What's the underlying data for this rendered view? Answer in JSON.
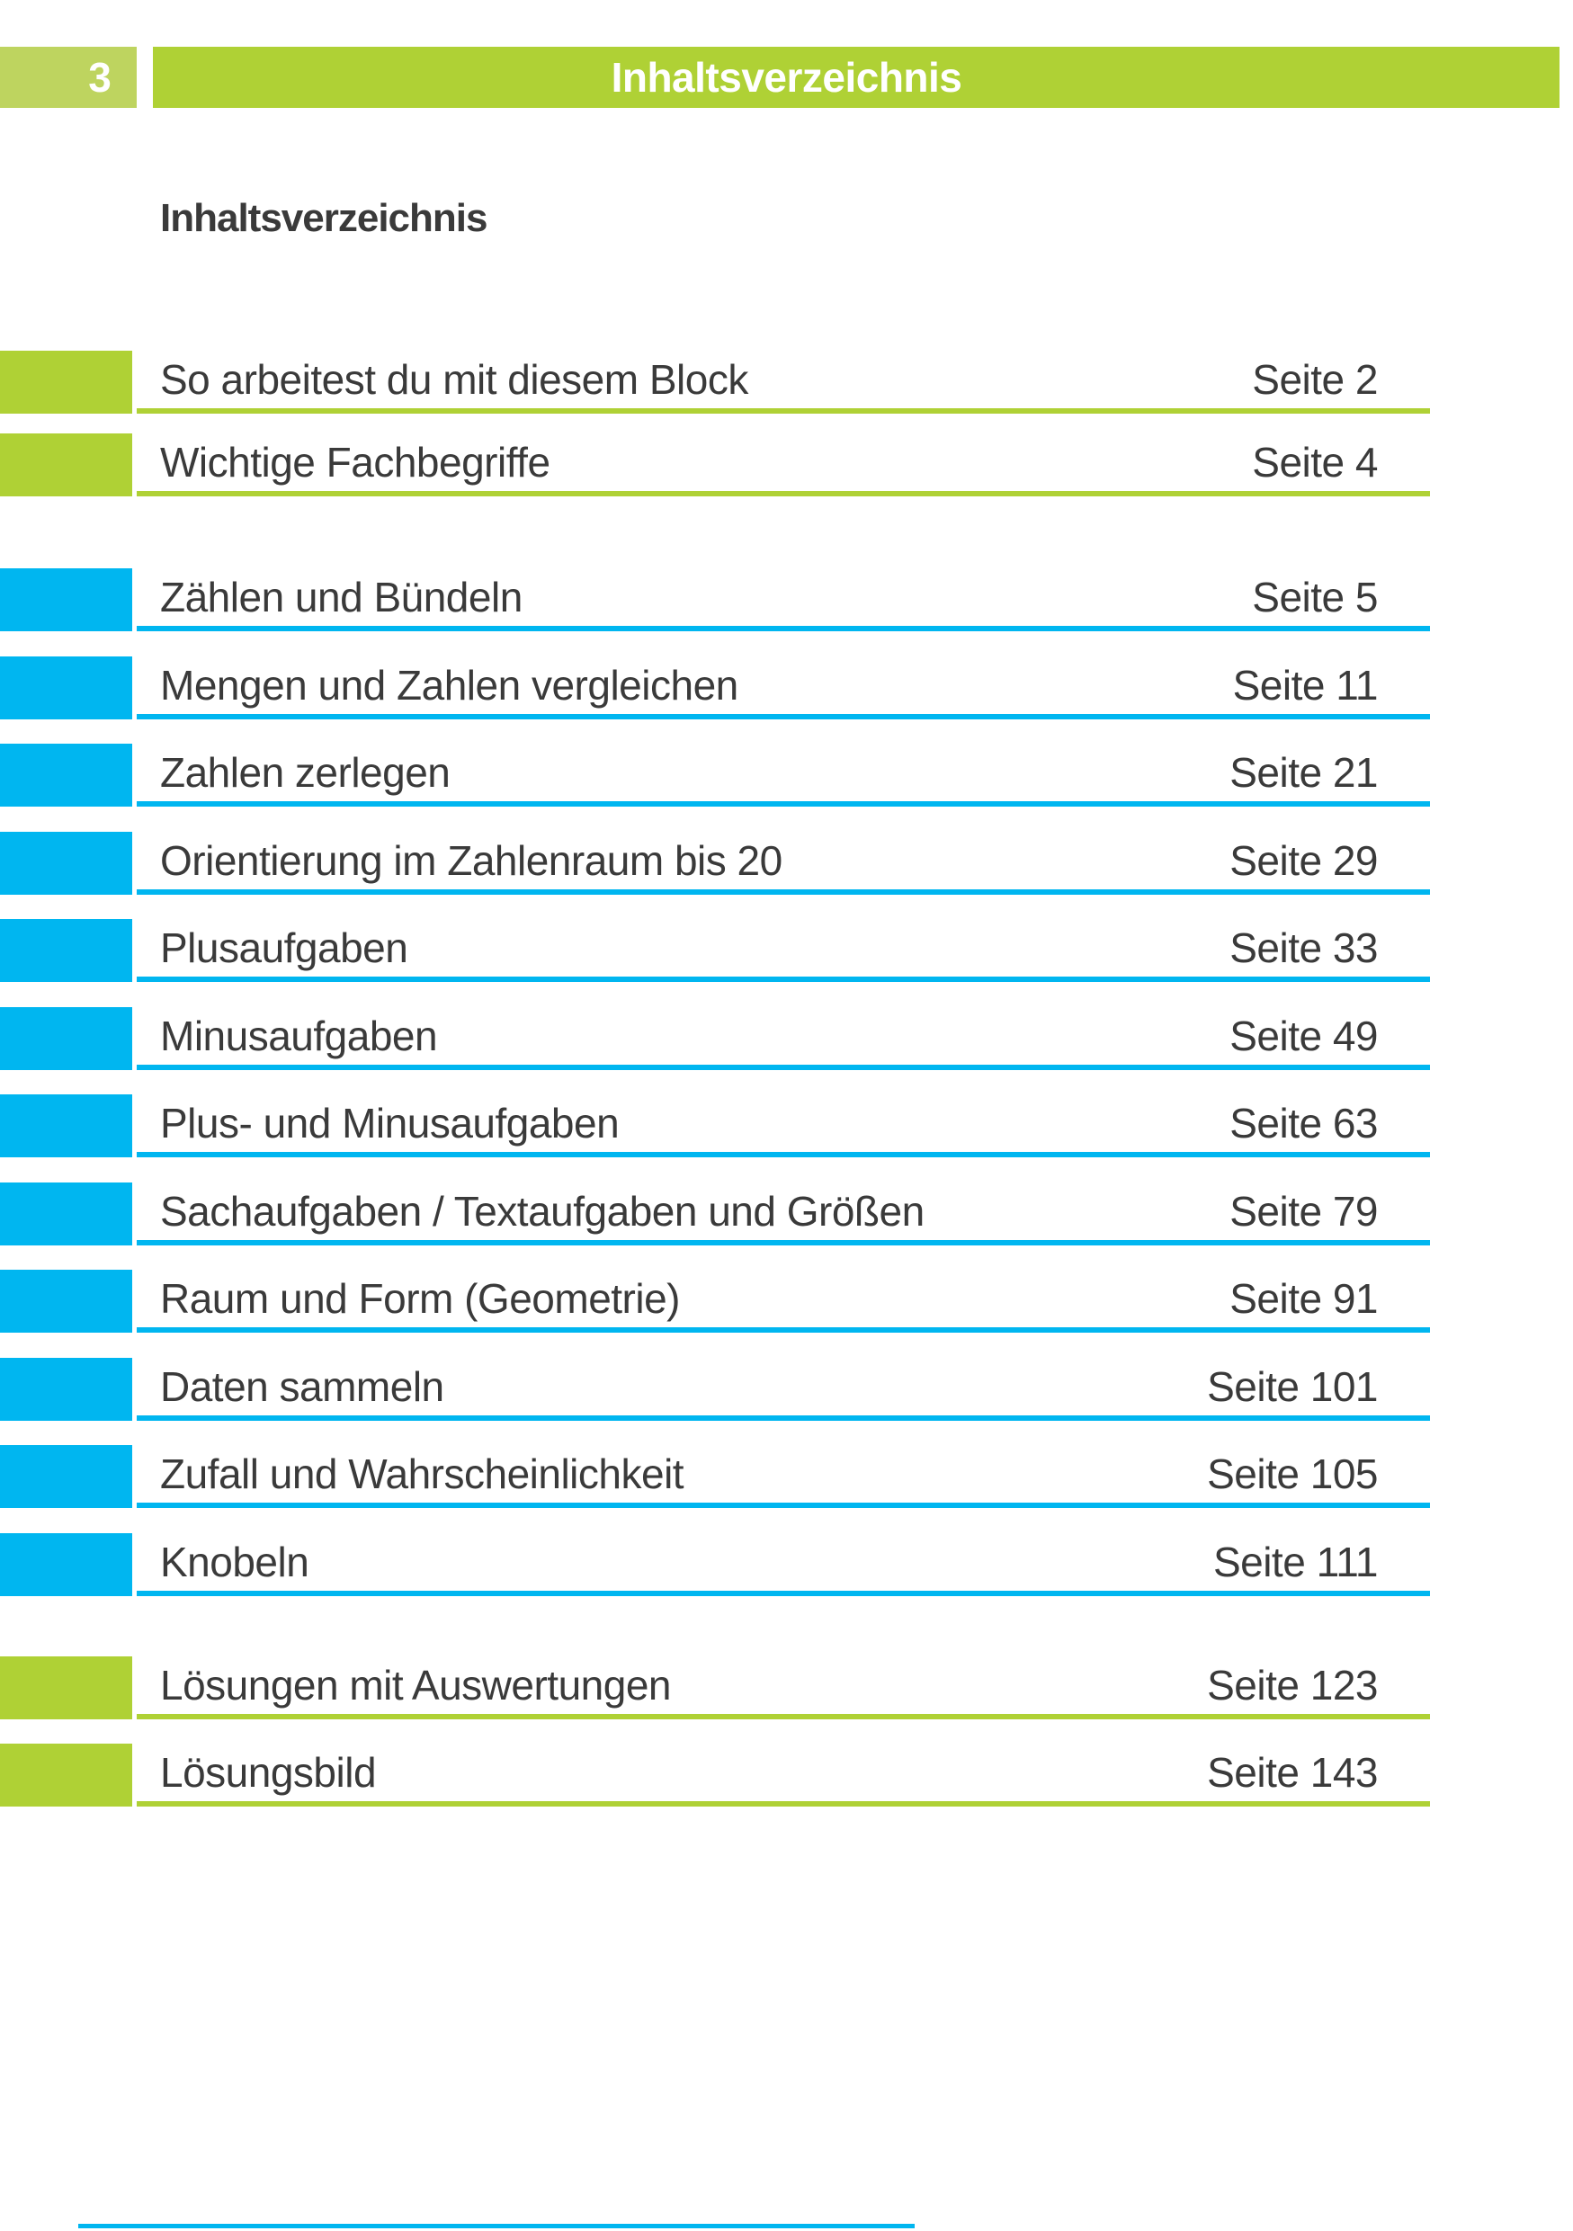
{
  "header": {
    "page_number": "3",
    "title": "Inhaltsverzeichnis"
  },
  "heading": "Inhaltsverzeichnis",
  "colors": {
    "green": "#afd135",
    "light_green": "#bed45f",
    "blue": "#00b6f0",
    "text": "#3a3a3a"
  },
  "toc": {
    "page_label": "Seite",
    "groups": [
      {
        "color": "green",
        "items": [
          {
            "title": "So arbeitest du mit diesem Block",
            "page": "2"
          },
          {
            "title": "Wichtige Fachbegriffe",
            "page": "4"
          }
        ]
      },
      {
        "color": "blue",
        "items": [
          {
            "title": "Zählen und Bündeln",
            "page": "5"
          },
          {
            "title": "Mengen und Zahlen vergleichen",
            "page": "11"
          },
          {
            "title": "Zahlen zerlegen",
            "page": "21"
          },
          {
            "title": "Orientierung im Zahlenraum bis 20",
            "page": "29"
          },
          {
            "title": "Plusaufgaben",
            "page": "33"
          },
          {
            "title": "Minusaufgaben",
            "page": "49"
          },
          {
            "title": "Plus- und Minusaufgaben",
            "page": "63"
          },
          {
            "title": "Sachaufgaben / Textaufgaben und Größen",
            "page": "79"
          },
          {
            "title": "Raum und Form (Geometrie)",
            "page": "91"
          },
          {
            "title": "Daten sammeln",
            "page": "101"
          },
          {
            "title": "Zufall und Wahrscheinlichkeit",
            "page": "105"
          },
          {
            "title": "Knobeln",
            "page": "111"
          }
        ]
      },
      {
        "color": "green",
        "items": [
          {
            "title": "Lösungen mit Auswertungen",
            "page": "123"
          },
          {
            "title": "Lösungsbild",
            "page": "143"
          }
        ]
      }
    ]
  }
}
